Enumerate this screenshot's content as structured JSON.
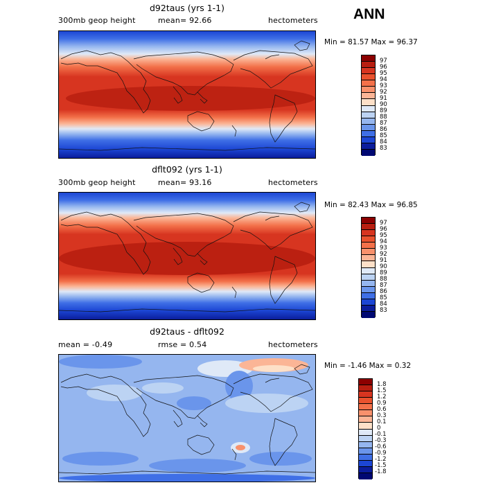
{
  "season": "ANN",
  "panels": [
    {
      "title": "d92taus (yrs 1-1)",
      "left": "300mb geop height",
      "middle": "mean=  92.66",
      "right": "hectometers",
      "minmax": "Min =  81.57 Max =  96.37",
      "colorbar": {
        "labels": [
          "97",
          "96",
          "95",
          "94",
          "93",
          "92",
          "91",
          "90",
          "89",
          "88",
          "87",
          "86",
          "85",
          "84",
          "83"
        ],
        "colors": [
          "#8c0000",
          "#b81e10",
          "#d73520",
          "#e9522e",
          "#f3714a",
          "#f8916c",
          "#fbb596",
          "#fde0c8",
          "#dfe9f7",
          "#bcd3f3",
          "#95b6ef",
          "#6a95eb",
          "#3f6fe6",
          "#1c46d4",
          "#0b1d9c",
          "#000872"
        ]
      }
    },
    {
      "title": "dflt092 (yrs 1-1)",
      "left": "300mb geop height",
      "middle": "mean=  93.16",
      "right": "hectometers",
      "minmax": "Min =  82.43 Max =  96.85",
      "colorbar": {
        "labels": [
          "97",
          "96",
          "95",
          "94",
          "93",
          "92",
          "91",
          "90",
          "89",
          "88",
          "87",
          "86",
          "85",
          "84",
          "83"
        ],
        "colors": [
          "#8c0000",
          "#b81e10",
          "#d73520",
          "#e9522e",
          "#f3714a",
          "#f8916c",
          "#fbb596",
          "#fde0c8",
          "#dfe9f7",
          "#bcd3f3",
          "#95b6ef",
          "#6a95eb",
          "#3f6fe6",
          "#1c46d4",
          "#0b1d9c",
          "#000872"
        ]
      }
    },
    {
      "title": "d92taus - dflt092",
      "left": "mean =   -0.49",
      "middle": "rmse =    0.54",
      "right": "hectometers",
      "minmax": "Min =  -1.46 Max =    0.32",
      "colorbar": {
        "labels": [
          "1.8",
          "1.5",
          "1.2",
          "0.9",
          "0.6",
          "0.3",
          "0.1",
          "0",
          "-0.1",
          "-0.3",
          "-0.6",
          "-0.9",
          "-1.2",
          "-1.5",
          "-1.8"
        ],
        "colors": [
          "#8c0000",
          "#b81e10",
          "#d73520",
          "#e9522e",
          "#f3714a",
          "#f8916c",
          "#fbb596",
          "#fde0c8",
          "#dfe9f7",
          "#bcd3f3",
          "#95b6ef",
          "#6a95eb",
          "#3f6fe6",
          "#1c46d4",
          "#0b1d9c",
          "#000872"
        ]
      }
    }
  ]
}
